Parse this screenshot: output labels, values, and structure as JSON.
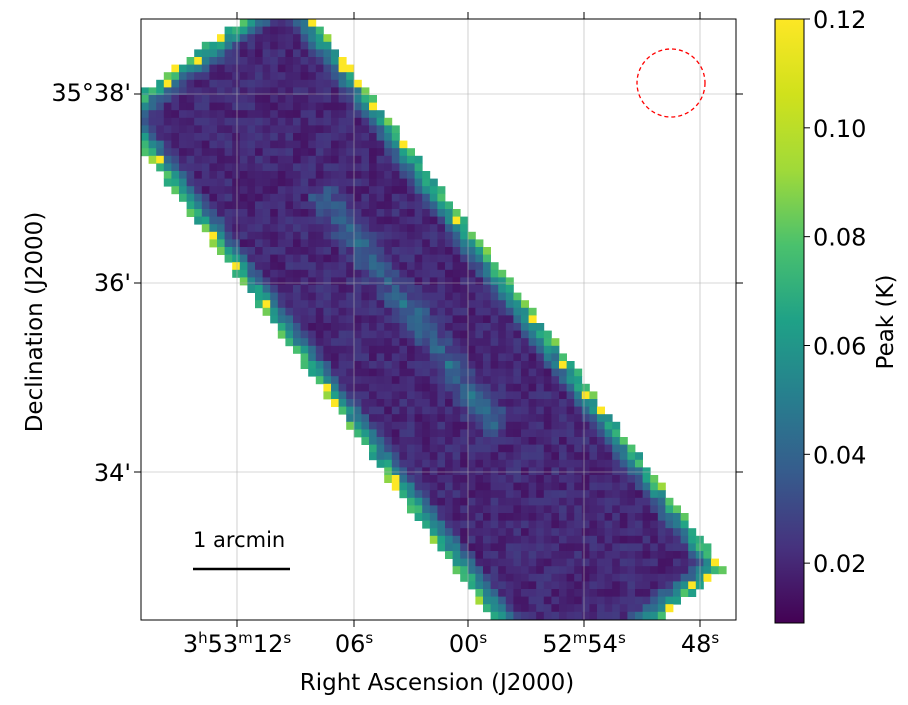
{
  "chart_data": {
    "type": "heatmap",
    "xlabel": "Right Ascension (J2000)",
    "ylabel": "Declination (J2000)",
    "x_ticks": [
      {
        "h": "3",
        "m": "53",
        "s": "12"
      },
      {
        "s": "06"
      },
      {
        "s": "00"
      },
      {
        "m": "52",
        "s": "54"
      },
      {
        "s": "48"
      }
    ],
    "y_ticks": [
      "35°38'",
      "36'",
      "34'"
    ],
    "grid": true,
    "colorbar": {
      "label": "Peak (K)",
      "ticks": [
        "0.02",
        "0.04",
        "0.06",
        "0.08",
        "0.10",
        "0.12"
      ],
      "min": 0.009,
      "max": 0.12,
      "colormap": "viridis"
    },
    "annotations": {
      "scalebar_label": "1 arcmin",
      "scalebar_length_arcmin": 1,
      "beam": "red dashed circle (top-right)"
    },
    "map_description": {
      "shape": "tilted rectangular footprint, long axis from upper-left to lower-right",
      "interior_level_K": 0.02,
      "ridge_level_K": 0.05,
      "edge_level_K": 0.09,
      "edge_max_K": 0.12
    }
  },
  "colors": {
    "beam": "#ff0000",
    "grid": "#b0b0b0",
    "scalebar": "#000000"
  }
}
